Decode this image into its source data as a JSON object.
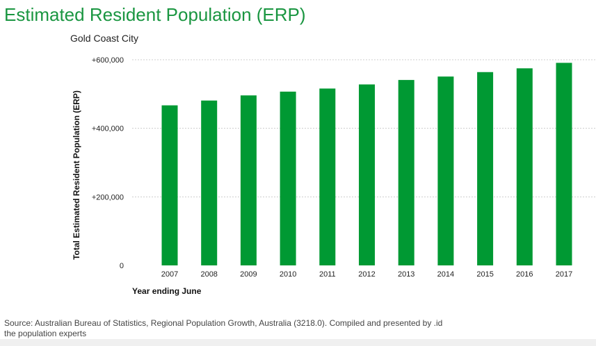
{
  "title": "Estimated Resident Population (ERP)",
  "subtitle": "Gold Coast City",
  "source_line1": "Source: Australian Bureau of Statistics, Regional Population Growth, Australia (3218.0). Compiled and presented by .id",
  "source_line2": "the population experts",
  "colors": {
    "bar": "#009933",
    "title": "#1a9641",
    "grid": "#cccccc"
  },
  "chart_data": {
    "type": "bar",
    "title": "",
    "xlabel": "Year ending June",
    "ylabel": "Total Estimated Resident Population (ERP)",
    "ylim": [
      0,
      600000
    ],
    "yticks": [
      0,
      200000,
      400000,
      600000
    ],
    "ytick_labels": [
      "0",
      "+200,000",
      "+400,000",
      "+600,000"
    ],
    "grid": true,
    "categories": [
      "2007",
      "2008",
      "2009",
      "2010",
      "2011",
      "2012",
      "2013",
      "2014",
      "2015",
      "2016",
      "2017"
    ],
    "values": [
      467000,
      481000,
      496000,
      507000,
      516000,
      528000,
      541000,
      551000,
      564000,
      575000,
      591000
    ]
  }
}
